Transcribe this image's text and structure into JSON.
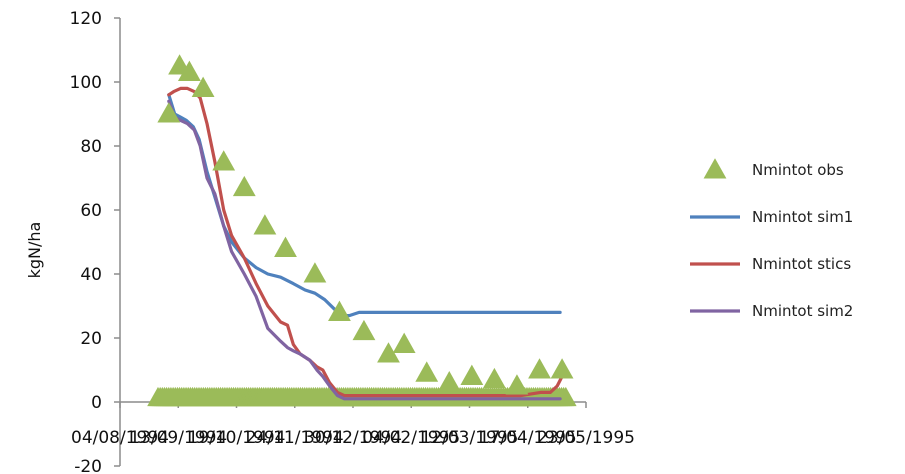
{
  "chart_data": {
    "type": "line",
    "title": "",
    "xlabel": "",
    "ylabel": "kgN/ha",
    "ylim": [
      -20,
      120
    ],
    "y_ticks": [
      "120",
      "100",
      "80",
      "60",
      "40",
      "20",
      "0",
      "-20"
    ],
    "x_ticks": [
      "04/08/1994",
      "13/09/1994",
      "19/10/1994",
      "24/11/1994",
      "30/12/1994",
      "04/02/1995",
      "12/03/1995",
      "17/04/1995",
      "23/05/1995"
    ],
    "grid": false,
    "legend_position": "right",
    "series": [
      {
        "name": "Nmintot obs",
        "kind": "marker",
        "color": "#9bbb59",
        "x": [
          11,
          22,
          32,
          46,
          67,
          88,
          109,
          130,
          160,
          185,
          210,
          235,
          251,
          274,
          297,
          320,
          343,
          366,
          389,
          412
        ],
        "y": [
          90,
          105,
          103,
          98,
          75,
          67,
          55,
          48,
          40,
          28,
          22,
          15,
          18,
          9,
          6,
          8,
          7,
          5,
          10,
          10
        ],
        "zero_row_x_start": 0,
        "zero_row_x_end": 416,
        "zero_row_y": 0
      },
      {
        "name": "Nmintot sim1",
        "kind": "line",
        "color": "#4f81bd",
        "x": [
          11,
          17,
          23,
          29,
          36,
          42,
          50,
          58,
          67,
          75,
          88,
          100,
          112,
          125,
          138,
          150,
          160,
          170,
          180,
          188,
          195,
          205,
          215,
          230,
          260,
          300,
          340,
          380,
          410
        ],
        "y": [
          96,
          90,
          89,
          88,
          86,
          82,
          72,
          64,
          55,
          50,
          45,
          42,
          40,
          39,
          37,
          35,
          34,
          32,
          29,
          27,
          27,
          28,
          28,
          28,
          28,
          28,
          28,
          28,
          28
        ]
      },
      {
        "name": "Nmintot stics",
        "kind": "line",
        "color": "#c0504d",
        "x": [
          11,
          16,
          23,
          30,
          37,
          43,
          50,
          58,
          67,
          75,
          88,
          100,
          112,
          125,
          132,
          138,
          145,
          155,
          162,
          168,
          175,
          183,
          190,
          200,
          220,
          260,
          300,
          340,
          370,
          390,
          400,
          407,
          412
        ],
        "y": [
          96,
          97,
          98,
          98,
          97,
          95,
          87,
          75,
          60,
          52,
          45,
          37,
          30,
          25,
          24,
          18,
          15,
          13,
          11,
          10,
          6,
          3,
          2,
          2,
          2,
          2,
          2,
          2,
          2,
          3,
          3,
          5,
          8
        ]
      },
      {
        "name": "Nmintot sim2",
        "kind": "line",
        "color": "#8064a2",
        "x": [
          11,
          17,
          23,
          30,
          37,
          43,
          50,
          58,
          67,
          75,
          88,
          100,
          112,
          125,
          132,
          138,
          145,
          155,
          162,
          168,
          175,
          183,
          190,
          200,
          220,
          260,
          300,
          340,
          380,
          410
        ],
        "y": [
          94,
          89,
          88,
          87,
          85,
          80,
          70,
          65,
          55,
          47,
          40,
          33,
          23,
          19,
          17,
          16,
          15,
          13,
          10,
          8,
          5,
          2,
          1,
          1,
          1,
          1,
          1,
          1,
          1,
          1
        ]
      }
    ]
  }
}
